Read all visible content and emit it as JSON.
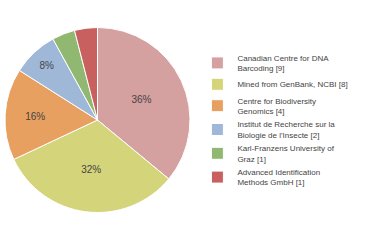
{
  "chart_data": {
    "type": "pie",
    "categories": [
      "Canadian Centre for DNA\nBarcoding [9]",
      "Mined from GenBank, NCBI [8]",
      "Centre for Biodiversity\nGenomics [4]",
      "Institut de Recherche sur la\nBiologie de l'Insecte [2]",
      "Karl-Franzens University of\nGraz [1]",
      "Advanced Identification\nMethods GmbH [1]"
    ],
    "values": [
      36,
      32,
      16,
      8,
      4,
      4
    ],
    "value_labels": [
      "36%",
      "32%",
      "16%",
      "8%",
      null,
      null
    ],
    "data_labels": true,
    "colors": [
      "#d4a0a0",
      "#d4d47a",
      "#e8a060",
      "#a0b8d8",
      "#90b870",
      "#c86060"
    ],
    "legend": "right"
  }
}
